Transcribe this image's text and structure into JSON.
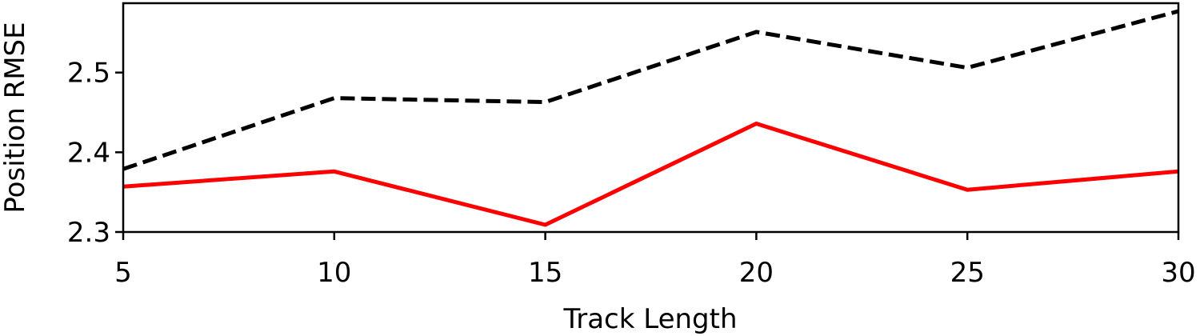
{
  "chart_data": {
    "type": "line",
    "title": "",
    "xlabel": "Track Length",
    "ylabel": "Position RMSE",
    "x": [
      5,
      10,
      15,
      20,
      25,
      30
    ],
    "xlim": [
      5,
      30
    ],
    "ylim": [
      2.3,
      2.587
    ],
    "xticks": [
      "5",
      "10",
      "15",
      "20",
      "25",
      "30"
    ],
    "yticks": [
      "2.3",
      "2.4",
      "2.5"
    ],
    "grid": false,
    "series": [
      {
        "values": [
          2.379,
          2.468,
          2.463,
          2.551,
          2.506,
          2.577
        ],
        "color": "#000000",
        "style": "dashed"
      },
      {
        "values": [
          2.357,
          2.376,
          2.309,
          2.436,
          2.353,
          2.376
        ],
        "color": "#ff0000",
        "style": "solid"
      }
    ]
  }
}
